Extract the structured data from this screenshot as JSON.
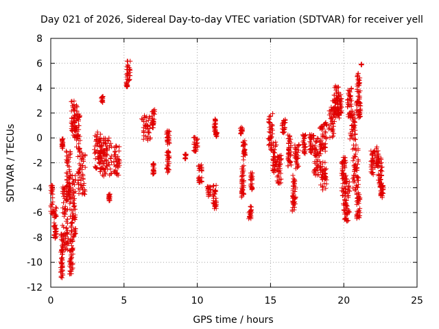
{
  "chart_data": {
    "type": "scatter",
    "title": "Day 021 of 2026, Sidereal Day-to-day VTEC variation (SDTVAR) for receiver yell",
    "xlabel": "GPS time / hours",
    "ylabel": "SDTVAR / TECUs",
    "xlim": [
      0,
      25
    ],
    "ylim": [
      -12,
      8
    ],
    "xticks": [
      "0",
      "5",
      "10",
      "15",
      "20",
      "25"
    ],
    "yticks": [
      "-12",
      "-10",
      "-8",
      "-6",
      "-4",
      "-2",
      "0",
      "2",
      "4",
      "6",
      "8"
    ],
    "grid": true,
    "marker": "+",
    "color": "#e00000",
    "series": [
      {
        "name": "SDTVAR",
        "clusters": [
          [
            0.05,
            -5.0,
            0.1,
            1.2
          ],
          [
            0.3,
            -6.8,
            0.1,
            1.3
          ],
          [
            0.75,
            -9.5,
            0.08,
            1.8
          ],
          [
            0.8,
            -0.5,
            0.05,
            0.5
          ],
          [
            1.0,
            -6.5,
            0.2,
            2.6
          ],
          [
            1.2,
            -3.0,
            0.15,
            2.0
          ],
          [
            1.4,
            -9.5,
            0.12,
            1.5
          ],
          [
            1.5,
            -5.5,
            0.2,
            2.5
          ],
          [
            1.6,
            1.5,
            0.2,
            1.5
          ],
          [
            1.8,
            0.5,
            0.2,
            1.5
          ],
          [
            2.1,
            -2.8,
            0.25,
            1.8
          ],
          [
            3.2,
            -1.0,
            0.25,
            1.5
          ],
          [
            3.5,
            -1.5,
            0.15,
            1.6
          ],
          [
            3.5,
            3.1,
            0.08,
            0.25
          ],
          [
            3.9,
            -1.5,
            0.25,
            1.5
          ],
          [
            4.0,
            -4.8,
            0.05,
            0.3
          ],
          [
            4.5,
            -1.8,
            0.2,
            1.2
          ],
          [
            5.3,
            5.4,
            0.12,
            0.8
          ],
          [
            5.2,
            4.3,
            0.05,
            0.2
          ],
          [
            6.5,
            0.8,
            0.3,
            1.0
          ],
          [
            7.0,
            1.6,
            0.1,
            0.8
          ],
          [
            7.0,
            -2.5,
            0.05,
            0.5
          ],
          [
            8.0,
            -2.0,
            0.1,
            1.0
          ],
          [
            8.0,
            0.0,
            0.1,
            0.6
          ],
          [
            9.2,
            -1.5,
            0.05,
            0.2
          ],
          [
            9.9,
            -0.5,
            0.15,
            0.6
          ],
          [
            10.2,
            -2.8,
            0.12,
            0.8
          ],
          [
            10.8,
            -4.3,
            0.12,
            0.4
          ],
          [
            11.2,
            -4.7,
            0.12,
            1.0
          ],
          [
            11.2,
            1.0,
            0.05,
            0.6
          ],
          [
            11.3,
            0.3,
            0.05,
            0.2
          ],
          [
            13.0,
            0.6,
            0.08,
            0.3
          ],
          [
            13.1,
            -3.5,
            0.08,
            1.3
          ],
          [
            13.2,
            -1.0,
            0.08,
            0.8
          ],
          [
            13.6,
            -6.0,
            0.1,
            0.6
          ],
          [
            13.7,
            -3.5,
            0.08,
            0.7
          ],
          [
            15.0,
            0.5,
            0.15,
            1.5
          ],
          [
            15.3,
            -1.5,
            0.15,
            1.3
          ],
          [
            15.6,
            -2.5,
            0.15,
            1.2
          ],
          [
            15.9,
            1.0,
            0.12,
            0.6
          ],
          [
            16.3,
            -1.0,
            0.12,
            1.3
          ],
          [
            16.6,
            -4.5,
            0.12,
            1.5
          ],
          [
            16.8,
            -1.5,
            0.15,
            1.0
          ],
          [
            17.3,
            -0.5,
            0.1,
            0.8
          ],
          [
            17.8,
            -0.5,
            0.15,
            0.8
          ],
          [
            18.2,
            -1.5,
            0.25,
            1.5
          ],
          [
            18.6,
            0.0,
            0.25,
            1.3
          ],
          [
            18.6,
            -3.0,
            0.25,
            1.2
          ],
          [
            19.2,
            1.5,
            0.25,
            1.5
          ],
          [
            19.5,
            3.0,
            0.2,
            1.2
          ],
          [
            19.7,
            2.5,
            0.15,
            1.0
          ],
          [
            20.0,
            -3.5,
            0.15,
            2.0
          ],
          [
            20.2,
            -5.0,
            0.2,
            1.8
          ],
          [
            20.4,
            2.8,
            0.15,
            1.2
          ],
          [
            20.6,
            1.0,
            0.2,
            1.2
          ],
          [
            20.8,
            -2.5,
            0.2,
            2.0
          ],
          [
            21.0,
            4.0,
            0.12,
            1.2
          ],
          [
            21.0,
            2.2,
            0.15,
            0.6
          ],
          [
            21.0,
            -5.5,
            0.12,
            1.0
          ],
          [
            21.2,
            5.9,
            0.02,
            0.05
          ],
          [
            22.0,
            -2.0,
            0.15,
            1.0
          ],
          [
            22.3,
            -1.5,
            0.1,
            0.8
          ],
          [
            22.5,
            -2.8,
            0.15,
            1.2
          ],
          [
            22.6,
            -4.3,
            0.1,
            0.5
          ]
        ]
      }
    ]
  }
}
